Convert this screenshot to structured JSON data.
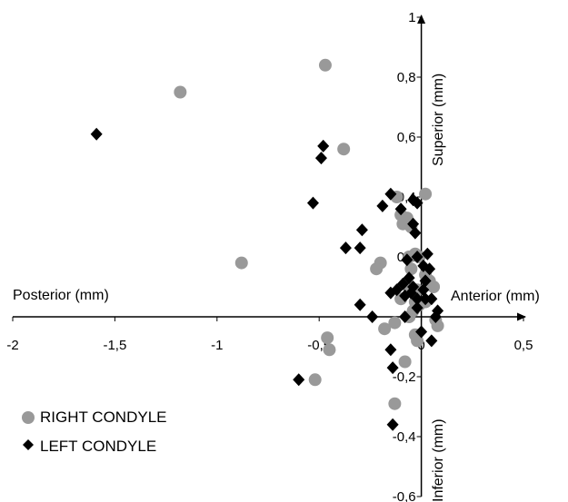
{
  "chart_data": {
    "type": "scatter",
    "xlim": [
      -2,
      0.5
    ],
    "ylim": [
      -0.6,
      1
    ],
    "x_ticks": [
      "-2",
      "-1,5",
      "-1",
      "-0,5",
      "0",
      "0,5"
    ],
    "y_ticks": [
      "1",
      "0,8",
      "0,6",
      "0,4",
      "0,2",
      "0",
      "-0,2",
      "-0,4",
      "-0,6"
    ],
    "labels": {
      "posterior": "Posterior (mm)",
      "anterior": "Anterior (mm)",
      "superior": "Superior (mm)",
      "inferior": "Inferior (mm)"
    },
    "grid": false,
    "legend_position": "bottom-left",
    "series": [
      {
        "name": "RIGHT CONDYLE",
        "color": "#999999",
        "marker": "circle",
        "points": [
          [
            -0.47,
            0.84
          ],
          [
            -1.18,
            0.75
          ],
          [
            -0.38,
            0.56
          ],
          [
            -0.88,
            0.18
          ],
          [
            0.02,
            0.41
          ],
          [
            -0.12,
            0.4
          ],
          [
            -0.1,
            0.34
          ],
          [
            -0.07,
            0.33
          ],
          [
            -0.09,
            0.31
          ],
          [
            -0.05,
            0.3
          ],
          [
            -0.03,
            0.21
          ],
          [
            -0.06,
            0.2
          ],
          [
            -0.01,
            0.2
          ],
          [
            -0.2,
            0.18
          ],
          [
            -0.22,
            0.16
          ],
          [
            -0.05,
            0.16
          ],
          [
            0.02,
            0.14
          ],
          [
            0.04,
            0.12
          ],
          [
            -0.06,
            0.1
          ],
          [
            -0.02,
            0.09
          ],
          [
            0.06,
            0.1
          ],
          [
            -0.1,
            0.06
          ],
          [
            -0.03,
            0.05
          ],
          [
            0.02,
            0.05
          ],
          [
            -0.01,
            0.04
          ],
          [
            -0.04,
            0.02
          ],
          [
            -0.06,
            0.0
          ],
          [
            0.07,
            -0.01
          ],
          [
            0.08,
            -0.03
          ],
          [
            -0.03,
            -0.06
          ],
          [
            -0.13,
            -0.02
          ],
          [
            -0.18,
            -0.04
          ],
          [
            -0.46,
            -0.07
          ],
          [
            -0.45,
            -0.11
          ],
          [
            -0.08,
            -0.15
          ],
          [
            -0.52,
            -0.21
          ],
          [
            -0.13,
            -0.29
          ],
          [
            -0.02,
            -0.08
          ]
        ]
      },
      {
        "name": "LEFT CONDYLE",
        "color": "#000000",
        "marker": "diamond",
        "points": [
          [
            -1.59,
            0.61
          ],
          [
            -0.48,
            0.57
          ],
          [
            -0.49,
            0.53
          ],
          [
            -0.15,
            0.41
          ],
          [
            -0.04,
            0.39
          ],
          [
            -0.02,
            0.38
          ],
          [
            -0.53,
            0.38
          ],
          [
            -0.19,
            0.37
          ],
          [
            -0.1,
            0.36
          ],
          [
            -0.04,
            0.31
          ],
          [
            -0.29,
            0.29
          ],
          [
            -0.03,
            0.28
          ],
          [
            -0.37,
            0.23
          ],
          [
            -0.3,
            0.23
          ],
          [
            0.03,
            0.21
          ],
          [
            -0.02,
            0.2
          ],
          [
            -0.07,
            0.19
          ],
          [
            0.01,
            0.17
          ],
          [
            0.04,
            0.16
          ],
          [
            -0.06,
            0.13
          ],
          [
            0.02,
            0.12
          ],
          [
            -0.09,
            0.11
          ],
          [
            -0.04,
            0.1
          ],
          [
            -0.12,
            0.09
          ],
          [
            0.01,
            0.09
          ],
          [
            -0.15,
            0.08
          ],
          [
            -0.05,
            0.08
          ],
          [
            -0.08,
            0.07
          ],
          [
            0.02,
            0.06
          ],
          [
            0.05,
            0.06
          ],
          [
            -0.02,
            0.06
          ],
          [
            -0.3,
            0.04
          ],
          [
            -0.02,
            0.03
          ],
          [
            0.08,
            0.02
          ],
          [
            -0.24,
            0.0
          ],
          [
            -0.08,
            0.0
          ],
          [
            0.07,
            0.0
          ],
          [
            0.0,
            -0.05
          ],
          [
            0.05,
            -0.08
          ],
          [
            -0.15,
            -0.11
          ],
          [
            -0.14,
            -0.17
          ],
          [
            -0.6,
            -0.21
          ],
          [
            -0.14,
            -0.36
          ]
        ]
      }
    ]
  }
}
